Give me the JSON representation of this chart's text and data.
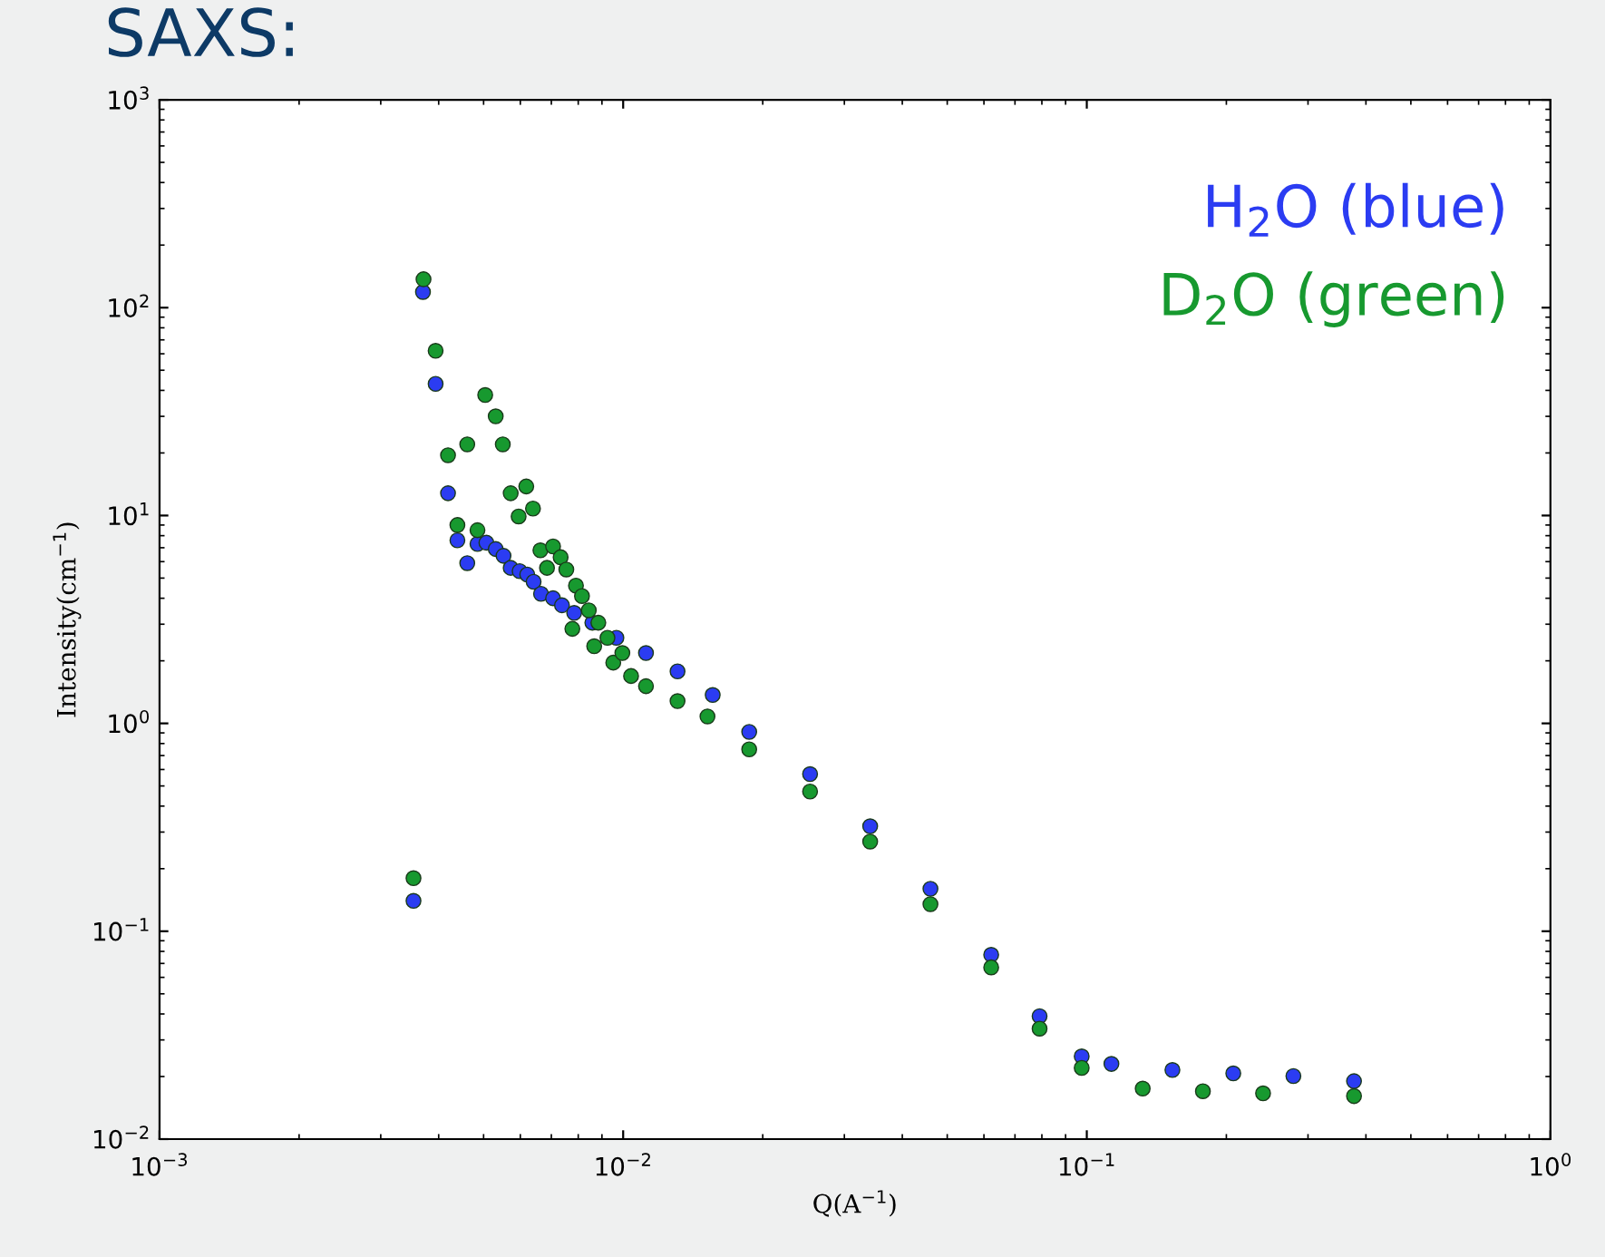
{
  "chart_data": {
    "type": "scatter",
    "title": "SAXS:",
    "xlabel": "Q(A$^{−1}$)",
    "ylabel": "Intensity(cm$^{−1}$)",
    "log": "xy",
    "marker": "circle",
    "grid": false,
    "legend": "top right",
    "xlim": [
      0.001,
      1
    ],
    "ylim": [
      0.01,
      1000
    ],
    "xticks": [
      {
        "value": 0.001,
        "label": "10$^{−3}$"
      },
      {
        "value": 0.01,
        "label": "10$^{−2}$"
      },
      {
        "value": 0.1,
        "label": "10$^{−1}$"
      },
      {
        "value": 1,
        "label": "10$^{0}$"
      }
    ],
    "yticks": [
      {
        "value": 0.01,
        "label": "10$^{−2}$"
      },
      {
        "value": 0.1,
        "label": "10$^{−1}$"
      },
      {
        "value": 1,
        "label": "10$^{0}$"
      },
      {
        "value": 10,
        "label": "10$^{1}$"
      },
      {
        "value": 100,
        "label": "10$^{2}$"
      },
      {
        "value": 1000,
        "label": "10$^{3}$"
      }
    ],
    "series": [
      {
        "name": "H$_{2}$O (blue)",
        "color": "#2b3cf2",
        "x": [
          0.00353,
          0.0037,
          0.00394,
          0.00419,
          0.00439,
          0.00461,
          0.00485,
          0.00507,
          0.00531,
          0.00552,
          0.00572,
          0.00598,
          0.00621,
          0.00641,
          0.00665,
          0.00706,
          0.00738,
          0.00784,
          0.00858,
          0.00967,
          0.0112,
          0.0131,
          0.0156,
          0.0187,
          0.0253,
          0.0341,
          0.046,
          0.0622,
          0.0791,
          0.0975,
          0.113,
          0.153,
          0.207,
          0.279,
          0.377
        ],
        "values": [
          0.14,
          119,
          43,
          12.8,
          7.6,
          5.9,
          7.3,
          7.4,
          6.9,
          6.4,
          5.6,
          5.4,
          5.2,
          4.8,
          4.2,
          4.0,
          3.7,
          3.4,
          3.05,
          2.58,
          2.18,
          1.78,
          1.37,
          0.91,
          0.57,
          0.32,
          0.16,
          0.077,
          0.039,
          0.025,
          0.023,
          0.0215,
          0.0207,
          0.0201,
          0.019
        ]
      },
      {
        "name": "D$_{2}$O (green)",
        "color": "#17992f",
        "x": [
          0.00353,
          0.00371,
          0.00394,
          0.00419,
          0.00439,
          0.00461,
          0.00485,
          0.00504,
          0.00531,
          0.0055,
          0.00572,
          0.00595,
          0.00618,
          0.00639,
          0.00663,
          0.00685,
          0.00706,
          0.00733,
          0.00754,
          0.00777,
          0.00791,
          0.00815,
          0.00843,
          0.00866,
          0.00884,
          0.00925,
          0.00952,
          0.00996,
          0.0104,
          0.0112,
          0.0131,
          0.0152,
          0.0187,
          0.0253,
          0.0341,
          0.046,
          0.0622,
          0.0791,
          0.0975,
          0.132,
          0.178,
          0.24,
          0.377
        ],
        "values": [
          0.18,
          137,
          62,
          19.5,
          9.0,
          22,
          8.5,
          38,
          30,
          22,
          12.8,
          9.9,
          13.8,
          10.8,
          6.8,
          5.6,
          7.1,
          6.3,
          5.5,
          2.85,
          4.6,
          4.1,
          3.5,
          2.35,
          3.05,
          2.58,
          1.96,
          2.18,
          1.69,
          1.51,
          1.28,
          1.08,
          0.75,
          0.47,
          0.27,
          0.135,
          0.067,
          0.034,
          0.022,
          0.0175,
          0.017,
          0.0166,
          0.0161
        ]
      }
    ]
  }
}
